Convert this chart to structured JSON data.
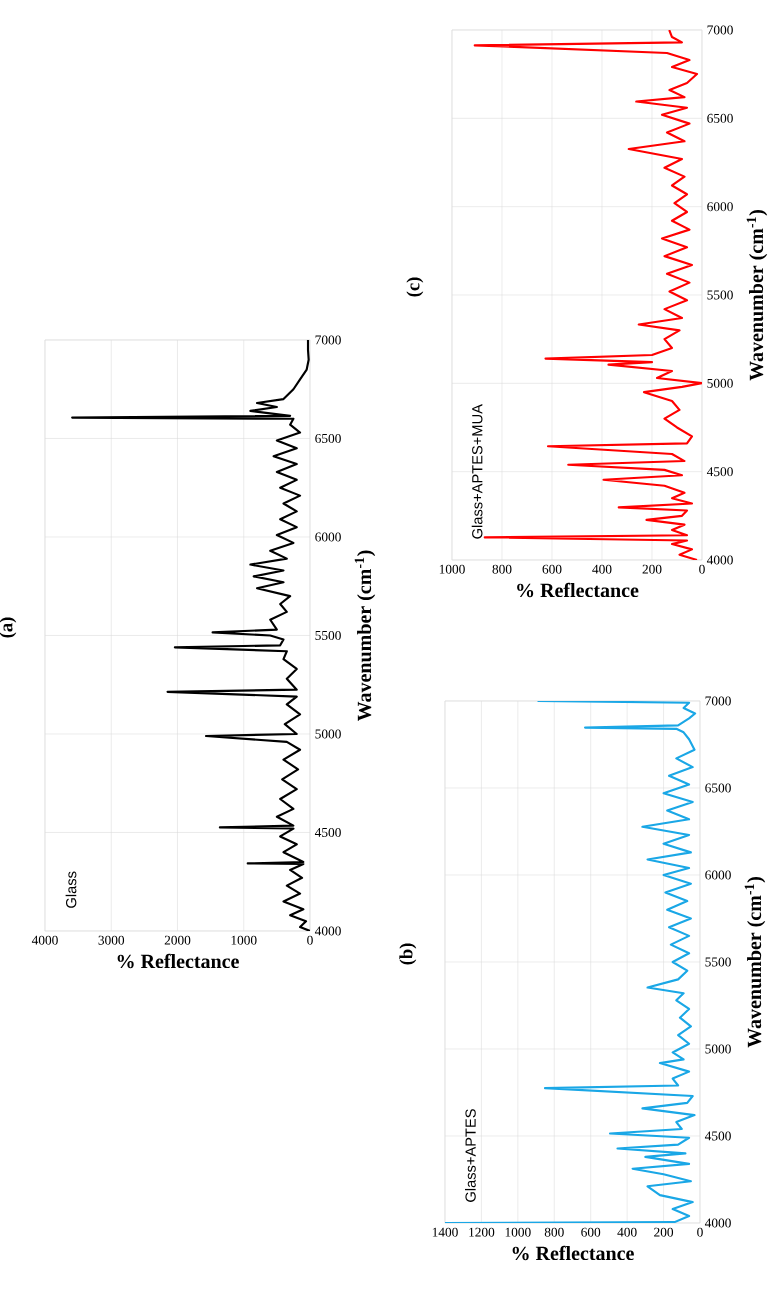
{
  "chart_data": [
    {
      "type": "line",
      "title": "(a)",
      "xlabel": "% Reflectance",
      "ylabel": "Wavenumber (cm$^{-1}$)",
      "annotations": [
        "Glass"
      ],
      "grid": true,
      "xlim": [
        4000,
        0
      ],
      "ylim": [
        4000,
        7000
      ],
      "xticks": [
        4000,
        3000,
        2000,
        1000,
        0
      ],
      "yticks": [
        4000,
        4500,
        5000,
        5500,
        6000,
        6500,
        7000
      ],
      "x": [
        0,
        150,
        60,
        300,
        100,
        400,
        150,
        350,
        120,
        300,
        100,
        940,
        100,
        400,
        200,
        450,
        250,
        1360,
        250,
        500,
        250,
        450,
        200,
        420,
        180,
        400,
        150,
        350,
        1570,
        200,
        380,
        150,
        350,
        200,
        2150,
        200,
        350,
        200,
        400,
        350,
        2040,
        450,
        400,
        600,
        1470,
        500,
        600,
        350,
        450,
        300,
        800,
        400,
        850,
        400,
        900,
        350,
        600,
        250,
        500,
        200,
        450,
        200,
        400,
        150,
        450,
        200,
        500,
        200,
        550,
        200,
        500,
        150,
        300,
        250,
        3590,
        300,
        900,
        500,
        800,
        400,
        250,
        150,
        50,
        20,
        30,
        30
      ],
      "series": [
        {
          "color": "#000000",
          "values": [
            4000,
            4020,
            4050,
            4080,
            4110,
            4150,
            4190,
            4230,
            4270,
            4310,
            4340,
            4343,
            4350,
            4400,
            4440,
            4480,
            4520,
            4526,
            4535,
            4580,
            4620,
            4670,
            4720,
            4770,
            4820,
            4870,
            4920,
            4960,
            4990,
            5000,
            5050,
            5100,
            5150,
            5190,
            5214,
            5225,
            5280,
            5330,
            5380,
            5420,
            5440,
            5450,
            5480,
            5500,
            5516,
            5530,
            5580,
            5620,
            5660,
            5700,
            5740,
            5770,
            5800,
            5830,
            5860,
            5890,
            5930,
            5970,
            6010,
            6050,
            6090,
            6130,
            6170,
            6210,
            6250,
            6290,
            6330,
            6370,
            6410,
            6450,
            6490,
            6530,
            6570,
            6600,
            6606,
            6615,
            6640,
            6660,
            6680,
            6700,
            6750,
            6800,
            6850,
            6900,
            6950,
            7000
          ]
        }
      ]
    },
    {
      "type": "line",
      "title": "(b)",
      "xlabel": "% Reflectance",
      "ylabel": "Wavenumber (cm$^{-1}$)",
      "annotations": [
        "Glass+APTES"
      ],
      "grid": true,
      "xlim": [
        1400,
        0
      ],
      "ylim": [
        4000,
        7000
      ],
      "xticks": [
        1400,
        1200,
        1000,
        800,
        600,
        400,
        200,
        0
      ],
      "yticks": [
        4000,
        4500,
        5000,
        5500,
        6000,
        6500,
        7000
      ],
      "x": [
        1400,
        140,
        60,
        150,
        40,
        220,
        288,
        50,
        200,
        370,
        60,
        300,
        80,
        453,
        120,
        60,
        494,
        100,
        130,
        30,
        316,
        70,
        40,
        851,
        120,
        150,
        60,
        220,
        90,
        150,
        60,
        120,
        50,
        110,
        60,
        130,
        90,
        288,
        120,
        70,
        150,
        60,
        160,
        60,
        170,
        50,
        180,
        70,
        190,
        50,
        200,
        60,
        288,
        50,
        200,
        60,
        316,
        60,
        180,
        40,
        200,
        60,
        170,
        40,
        130,
        30,
        60,
        90,
        130,
        631,
        120,
        60,
        27,
        90,
        60,
        892
      ],
      "series": [
        {
          "color": "#1aa7e6",
          "values": [
            4000,
            4005,
            4040,
            4080,
            4120,
            4160,
            4211,
            4240,
            4280,
            4312,
            4340,
            4380,
            4400,
            4428,
            4450,
            4490,
            4514,
            4540,
            4580,
            4620,
            4659,
            4690,
            4730,
            4775,
            4790,
            4830,
            4870,
            4919,
            4940,
            4980,
            5030,
            5080,
            5130,
            5180,
            5230,
            5280,
            5320,
            5353,
            5400,
            5450,
            5500,
            5550,
            5600,
            5650,
            5700,
            5750,
            5800,
            5850,
            5900,
            5950,
            6000,
            6040,
            6089,
            6130,
            6180,
            6230,
            6277,
            6320,
            6370,
            6420,
            6470,
            6520,
            6570,
            6620,
            6670,
            6720,
            6780,
            6820,
            6840,
            6847,
            6860,
            6900,
            6928,
            6960,
            6990,
            7000
          ]
        }
      ]
    },
    {
      "type": "line",
      "title": "(c)",
      "xlabel": "% Reflectance",
      "ylabel": "Wavenumber (cm$^{-1}$)",
      "annotations": [
        "Glass+APTES+MUA"
      ],
      "grid": true,
      "xlim": [
        1000,
        0
      ],
      "ylim": [
        4000,
        7000
      ],
      "xticks": [
        1000,
        800,
        600,
        400,
        200,
        0
      ],
      "yticks": [
        4000,
        4500,
        5000,
        5500,
        6000,
        6500,
        7000
      ],
      "x": [
        20,
        90,
        40,
        120,
        60,
        869,
        60,
        120,
        70,
        222,
        80,
        60,
        333,
        40,
        120,
        70,
        150,
        394,
        80,
        150,
        535,
        70,
        120,
        616,
        60,
        40,
        100,
        150,
        90,
        120,
        232,
        80,
        0,
        180,
        120,
        374,
        200,
        626,
        200,
        120,
        150,
        90,
        253,
        80,
        150,
        60,
        130,
        50,
        140,
        40,
        150,
        60,
        160,
        50,
        120,
        60,
        110,
        60,
        120,
        70,
        150,
        80,
        293,
        70,
        140,
        50,
        160,
        60,
        263,
        70,
        130,
        60,
        20,
        120,
        50,
        140,
        909,
        80,
        120,
        131
      ],
      "series": [
        {
          "color": "#ff0000",
          "values": [
            4000,
            4030,
            4060,
            4090,
            4110,
            4128,
            4140,
            4170,
            4200,
            4227,
            4250,
            4280,
            4298,
            4320,
            4350,
            4380,
            4420,
            4454,
            4480,
            4510,
            4539,
            4560,
            4600,
            4644,
            4660,
            4700,
            4750,
            4800,
            4850,
            4900,
            4950,
            4980,
            5001,
            5030,
            5070,
            5106,
            5120,
            5140,
            5160,
            5200,
            5250,
            5300,
            5333,
            5370,
            5420,
            5470,
            5520,
            5570,
            5620,
            5670,
            5720,
            5770,
            5820,
            5870,
            5920,
            5970,
            6020,
            6070,
            6120,
            6170,
            6220,
            6270,
            6326,
            6370,
            6420,
            6470,
            6520,
            6560,
            6595,
            6620,
            6660,
            6700,
            6751,
            6790,
            6830,
            6870,
            6913,
            6930,
            6960,
            7000
          ]
        }
      ]
    }
  ]
}
